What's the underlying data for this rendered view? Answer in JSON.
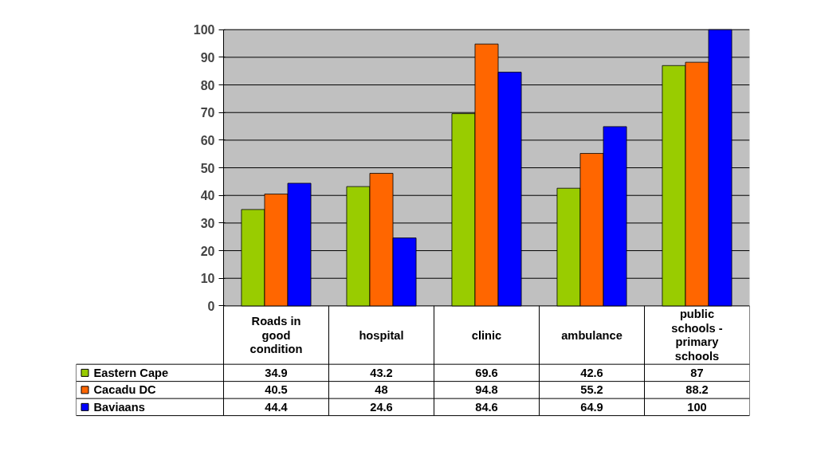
{
  "chart_data": {
    "type": "bar",
    "categories": [
      "Roads in good condition",
      "hospital",
      "clinic",
      "ambulance",
      "public schools - primary schools"
    ],
    "series": [
      {
        "name": "Eastern Cape",
        "color": "#99cc00",
        "values": [
          34.9,
          43.2,
          69.6,
          42.6,
          87
        ]
      },
      {
        "name": "Cacadu DC",
        "color": "#ff6600",
        "values": [
          40.5,
          48,
          94.8,
          55.2,
          88.2
        ]
      },
      {
        "name": "Baviaans",
        "color": "#0000ff",
        "values": [
          44.4,
          24.6,
          84.6,
          64.9,
          100
        ]
      }
    ],
    "ylim": [
      0,
      100
    ],
    "yticks": [
      0,
      10,
      20,
      30,
      40,
      50,
      60,
      70,
      80,
      90,
      100
    ],
    "grid": "y",
    "legend": "bottom",
    "data_labels": true
  }
}
